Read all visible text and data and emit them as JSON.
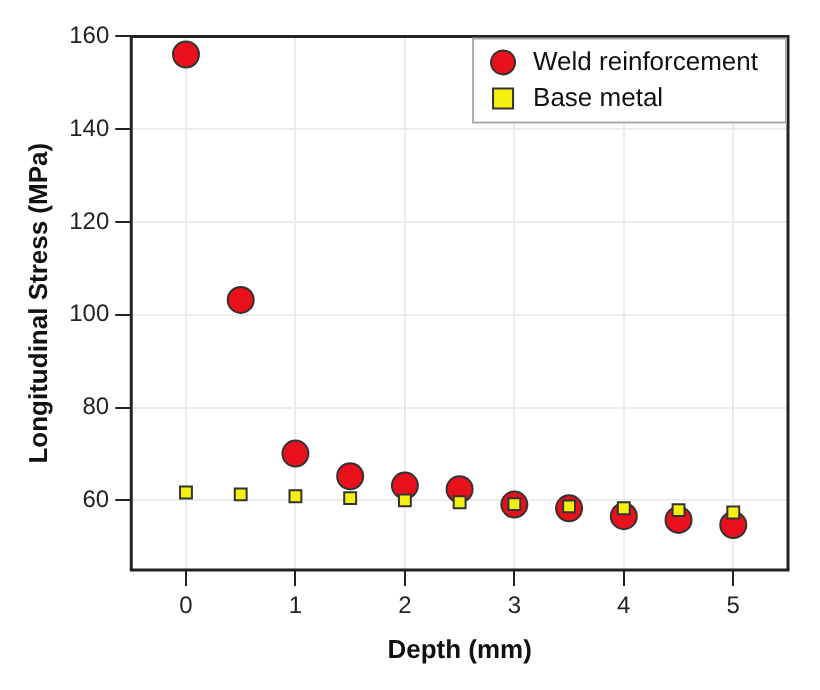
{
  "chart_data": {
    "type": "scatter",
    "xlabel": "Depth (mm)",
    "ylabel": "Longitudinal Stress (MPa)",
    "x": [
      0,
      0.5,
      1,
      1.5,
      2,
      2.5,
      3,
      3.5,
      4,
      4.5,
      5
    ],
    "series": [
      {
        "name": "Weld reinforcement",
        "color": "#e8101a",
        "marker": "circle",
        "values": [
          156.1,
          103.2,
          70.1,
          65.2,
          63.2,
          62.4,
          59.1,
          58.3,
          56.6,
          55.8,
          54.7
        ]
      },
      {
        "name": "Base metal",
        "color": "#f5f010",
        "marker": "square",
        "values": [
          61.7,
          61.3,
          60.9,
          60.5,
          60,
          59.6,
          59.2,
          58.7,
          58.3,
          57.9,
          57.4
        ]
      }
    ],
    "xlim": [
      -0.5,
      5.5
    ],
    "xticks": [
      0,
      1,
      2,
      3,
      4,
      5
    ],
    "ylim": [
      45,
      160
    ],
    "yticks": [
      60,
      80,
      100,
      120,
      140,
      160
    ],
    "grid": true,
    "legend": "top right"
  }
}
